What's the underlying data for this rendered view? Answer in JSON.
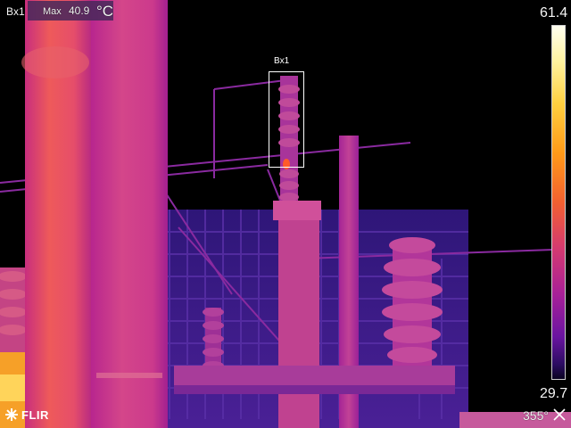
{
  "measurement": {
    "box_name": "Bx1",
    "stat_label": "Max",
    "value": "40.9",
    "unit": "°C"
  },
  "overlay_box": {
    "label": "Bx1"
  },
  "scale": {
    "max": "61.4",
    "min": "29.7",
    "palette": [
      "#fffff0",
      "#fff3a0",
      "#ffd040",
      "#ff9a18",
      "#f26030",
      "#d43a70",
      "#a82098",
      "#6a14a0",
      "#2a0c60",
      "#0a0420"
    ]
  },
  "brand": {
    "text": "FLIR",
    "icon": "flir-logo-icon"
  },
  "status": {
    "emissivity_text": "355° ",
    "icon": "camera-mode-icon"
  }
}
